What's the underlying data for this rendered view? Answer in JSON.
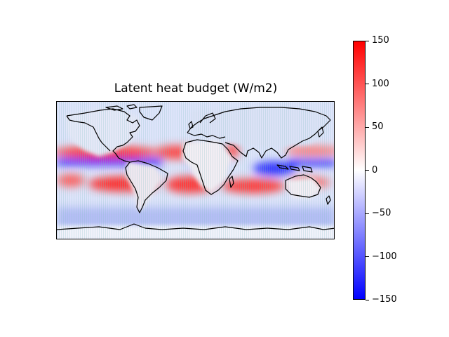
{
  "map": {
    "title": "Latent heat budget (W/m2)",
    "projection": "equirectangular, global",
    "colormap": "bwr",
    "features": [
      "coastlines"
    ]
  },
  "colorbar": {
    "range": [
      -150,
      150
    ],
    "ticks": [
      {
        "value": 150,
        "label": "150"
      },
      {
        "value": 100,
        "label": "100"
      },
      {
        "value": 50,
        "label": "50"
      },
      {
        "value": 0,
        "label": "0"
      },
      {
        "value": -50,
        "label": "−50"
      },
      {
        "value": -100,
        "label": "−100"
      },
      {
        "value": -150,
        "label": "−150"
      }
    ]
  },
  "colors": {
    "positive": "#ff0000",
    "zero": "#ffffff",
    "negative": "#0000ff",
    "coastline": "#000000"
  }
}
